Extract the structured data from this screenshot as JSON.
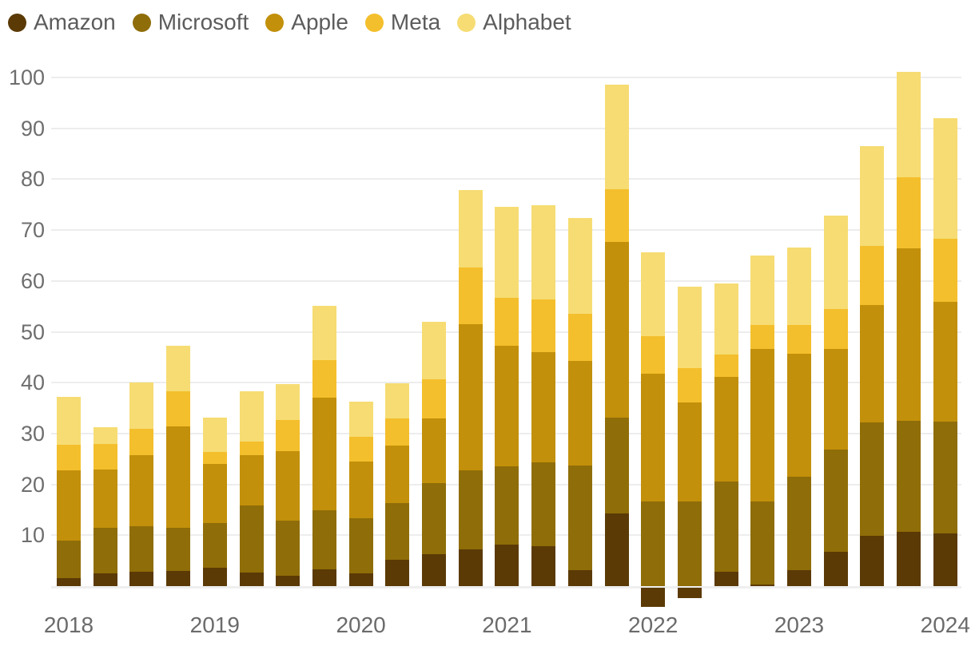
{
  "page": {
    "background_color": "#ffffff",
    "text_color_axis": "#6e6e6e",
    "text_color_legend": "#5c5c5c",
    "gridline_color": "#ededed"
  },
  "legend": {
    "position": "top-left",
    "items": [
      {
        "label": "Amazon",
        "color": "#5b3a06"
      },
      {
        "label": "Microsoft",
        "color": "#8f6d08"
      },
      {
        "label": "Apple",
        "color": "#c2900a"
      },
      {
        "label": "Meta",
        "color": "#f4bf2c"
      },
      {
        "label": "Alphabet",
        "color": "#f6dc73"
      }
    ]
  },
  "chart_data": {
    "type": "bar",
    "stacked": true,
    "title": "",
    "xlabel": "",
    "ylabel": "",
    "grid": "horizontal",
    "legend_position": "top-left",
    "ylim": [
      -6,
      104
    ],
    "y_ticks": [
      10,
      20,
      30,
      40,
      50,
      60,
      70,
      80,
      90,
      100
    ],
    "categories": [
      "2018 Q1",
      "2018 Q2",
      "2018 Q3",
      "2018 Q4",
      "2019 Q1",
      "2019 Q2",
      "2019 Q3",
      "2019 Q4",
      "2020 Q1",
      "2020 Q2",
      "2020 Q3",
      "2020 Q4",
      "2021 Q1",
      "2021 Q2",
      "2021 Q3",
      "2021 Q4",
      "2022 Q1",
      "2022 Q2",
      "2022 Q3",
      "2022 Q4",
      "2023 Q1",
      "2023 Q2",
      "2023 Q3",
      "2023 Q4",
      "2024 Q1"
    ],
    "x_axis_tick_labels": [
      "2018",
      "2019",
      "2020",
      "2021",
      "2022",
      "2023",
      "2024"
    ],
    "x_axis_tick_positions": [
      0,
      4,
      8,
      12,
      16,
      20,
      24
    ],
    "series": [
      {
        "name": "Amazon",
        "color": "#5b3a06",
        "values": [
          1.6,
          2.5,
          2.9,
          3.0,
          3.6,
          2.6,
          2.1,
          3.3,
          2.5,
          5.2,
          6.3,
          7.2,
          8.1,
          7.8,
          3.2,
          14.3,
          -3.8,
          -2.0,
          2.9,
          0.3,
          3.2,
          6.7,
          9.9,
          10.6,
          10.4
        ]
      },
      {
        "name": "Microsoft",
        "color": "#8f6d08",
        "values": [
          7.4,
          8.9,
          8.8,
          8.4,
          8.8,
          13.2,
          10.7,
          11.6,
          10.8,
          11.2,
          13.9,
          15.5,
          15.5,
          16.5,
          20.5,
          18.8,
          16.7,
          16.7,
          17.6,
          16.4,
          18.3,
          20.1,
          22.3,
          21.9,
          21.9
        ]
      },
      {
        "name": "Apple",
        "color": "#c2900a",
        "values": [
          13.8,
          11.5,
          14.1,
          20.0,
          11.6,
          10.0,
          13.7,
          22.2,
          11.2,
          11.3,
          12.7,
          28.8,
          23.6,
          21.7,
          20.6,
          34.6,
          25.0,
          19.4,
          20.7,
          30.0,
          24.2,
          19.9,
          23.0,
          33.9,
          23.6
        ]
      },
      {
        "name": "Meta",
        "color": "#f4bf2c",
        "values": [
          5.0,
          5.1,
          5.1,
          6.9,
          2.4,
          2.6,
          6.1,
          7.3,
          4.9,
          5.2,
          7.8,
          11.2,
          9.5,
          10.4,
          9.2,
          10.3,
          7.5,
          6.7,
          4.4,
          4.7,
          5.7,
          7.8,
          11.6,
          14.0,
          12.4
        ]
      },
      {
        "name": "Alphabet",
        "color": "#f6dc73",
        "values": [
          9.4,
          3.2,
          9.2,
          8.9,
          6.7,
          9.9,
          7.1,
          10.7,
          6.8,
          7.0,
          11.2,
          15.2,
          17.9,
          18.5,
          18.9,
          20.6,
          16.4,
          16.0,
          13.9,
          13.6,
          15.1,
          18.4,
          19.7,
          20.7,
          23.7
        ]
      }
    ]
  }
}
